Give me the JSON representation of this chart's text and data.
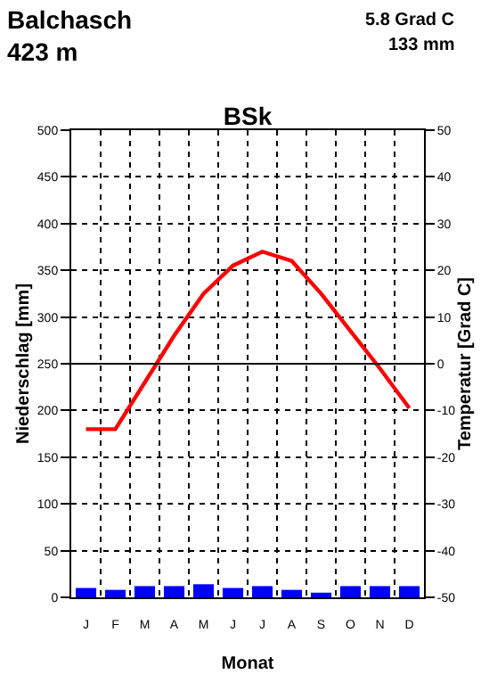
{
  "chart_data": {
    "type": "bar",
    "title": "BSk",
    "annotations": [
      "Balchasch",
      "423 m",
      "5.8 Grad C",
      "133 mm"
    ],
    "xlabel": "Monat",
    "ylabel": "Niederschlag [mm]",
    "y2label": "Temperatur [Grad C]",
    "categories": [
      "J",
      "F",
      "M",
      "A",
      "M",
      "J",
      "J",
      "A",
      "S",
      "O",
      "N",
      "D"
    ],
    "series": [
      {
        "color": "#0000ff",
        "values": [
          10,
          8,
          12,
          12,
          14,
          10,
          12,
          8,
          5,
          12,
          12,
          12
        ]
      },
      {
        "type": "line",
        "axis": "y2",
        "color": "#ff0000",
        "values": [
          -14,
          -14,
          -4,
          6,
          15,
          21,
          24,
          22,
          15,
          7,
          -1,
          -9.5
        ]
      }
    ],
    "ylim": [
      0,
      500
    ],
    "yticks": [
      0,
      50,
      100,
      150,
      200,
      250,
      300,
      350,
      400,
      450,
      500
    ],
    "y2lim": [
      -50,
      50
    ],
    "y2ticks": [
      -50,
      -40,
      -30,
      -20,
      -10,
      0,
      10,
      20,
      30,
      40,
      50
    ],
    "ref_lines": [
      {
        "axis": "y2",
        "value": 0,
        "color": "#000000",
        "line_style": "solid"
      }
    ],
    "grid": true,
    "legend": false,
    "marker": "none",
    "line_style": "solid"
  }
}
